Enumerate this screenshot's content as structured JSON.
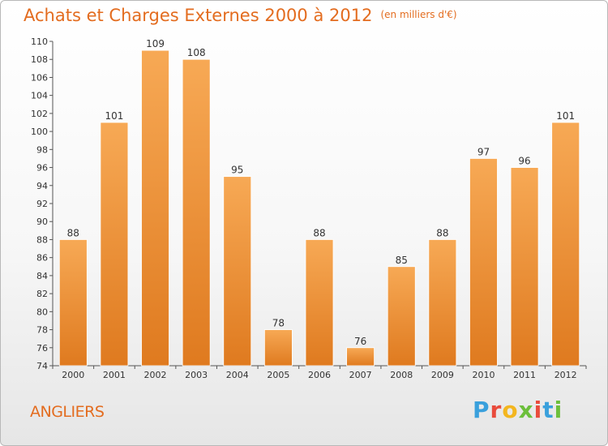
{
  "title": "Achats et Charges Externes 2000 à 2012",
  "unit": "(en milliers d'€)",
  "commune": "ANGLIERS",
  "logo": {
    "letters": [
      "P",
      "r",
      "o",
      "x",
      "i",
      "t",
      "i"
    ],
    "colors": [
      "#3aa0dc",
      "#e94b3c",
      "#f3b61f",
      "#6cbf3b",
      "#e94b3c",
      "#3aa0dc",
      "#6cbf3b"
    ]
  },
  "colors": {
    "bar_light": "#f7a955",
    "bar_dark": "#e07c21",
    "accent": "#e36c1f"
  },
  "chart_data": {
    "type": "bar",
    "categories": [
      "2000",
      "2001",
      "2002",
      "2003",
      "2004",
      "2005",
      "2006",
      "2007",
      "2008",
      "2009",
      "2010",
      "2011",
      "2012"
    ],
    "values": [
      88,
      101,
      109,
      108,
      95,
      78,
      88,
      76,
      85,
      88,
      97,
      96,
      101
    ],
    "title": "Achats et Charges Externes 2000 à 2012",
    "xlabel": "",
    "ylabel": "",
    "ylim": [
      74,
      110
    ],
    "yticks": [
      74,
      76,
      78,
      80,
      82,
      84,
      86,
      88,
      90,
      92,
      94,
      96,
      98,
      100,
      102,
      104,
      106,
      108,
      110
    ],
    "grid": false,
    "data_labels": true
  }
}
